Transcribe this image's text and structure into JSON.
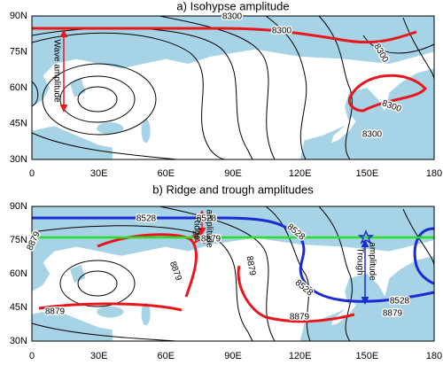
{
  "panels": [
    {
      "title": "a) Isohypse amplitude",
      "x_labels": [
        "0",
        "30E",
        "60E",
        "90E",
        "120E",
        "150E",
        "180"
      ],
      "y_labels": [
        "90N",
        "75N",
        "60N",
        "45N",
        "30N"
      ],
      "contour_labels": [
        "8300",
        "8300",
        "8300",
        "8300",
        "8300"
      ],
      "annotations": [
        "Wave amplitude"
      ]
    },
    {
      "title": "b) Ridge and trough amplitudes",
      "x_labels": [
        "0",
        "30E",
        "60E",
        "90E",
        "120E",
        "150E",
        "180"
      ],
      "y_labels": [
        "90N",
        "75N",
        "60N",
        "45N",
        "30N"
      ],
      "contour_labels": [
        "8528",
        "8528",
        "8528",
        "8528",
        "8528",
        "8879",
        "8879",
        "8879",
        "8879",
        "8879",
        "8879",
        "8879"
      ],
      "annotations": [
        "amplitude",
        "Ridge",
        "amplitude",
        "Trough"
      ]
    }
  ]
}
